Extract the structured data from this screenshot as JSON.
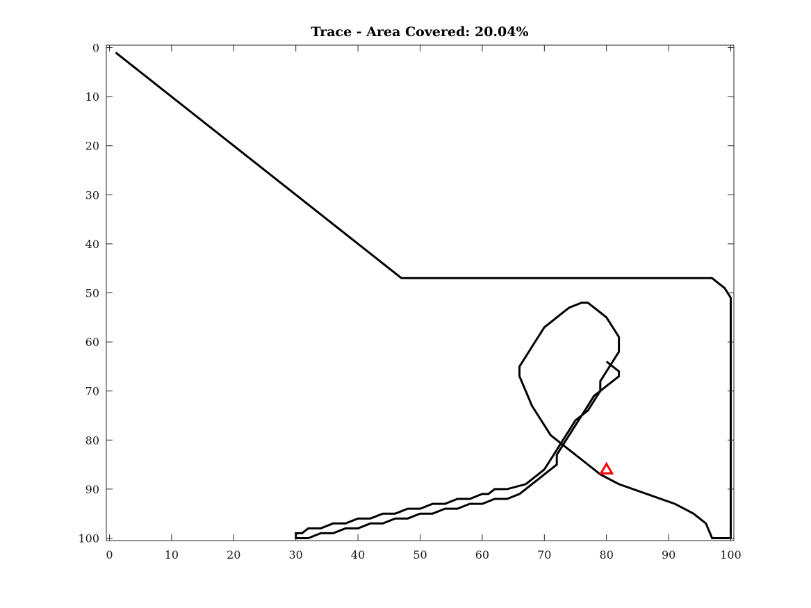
{
  "chart_data": {
    "type": "line",
    "title": "Trace - Area Covered: 20.04%",
    "xlabel": "",
    "ylabel": "",
    "xlim": [
      -0.5,
      100.5
    ],
    "ylim": [
      -0.5,
      100.5
    ],
    "y_reversed": true,
    "grid": false,
    "x_ticks": [
      0,
      10,
      20,
      30,
      40,
      50,
      60,
      70,
      80,
      90,
      100
    ],
    "y_ticks": [
      0,
      10,
      20,
      30,
      40,
      50,
      60,
      70,
      80,
      90,
      100
    ],
    "series": [
      {
        "color": "#000000",
        "x": [
          1,
          47,
          97,
          98,
          99,
          100,
          100,
          97,
          96,
          94,
          91,
          82,
          79,
          76,
          74,
          72,
          71,
          70,
          69,
          68,
          67,
          66,
          66,
          67,
          68,
          69,
          70,
          71,
          72,
          73,
          74,
          76,
          77,
          78,
          79,
          80,
          81,
          82,
          82,
          81,
          80,
          79,
          79,
          78,
          77,
          75,
          74,
          73,
          72,
          71,
          70,
          69,
          68,
          67,
          64,
          63,
          62,
          61,
          60,
          58,
          56,
          54,
          52,
          50,
          48,
          46,
          44,
          42,
          40,
          38,
          36,
          34,
          32,
          31,
          30,
          30,
          31,
          32,
          34,
          36,
          38,
          40,
          42,
          44,
          46,
          48,
          50,
          52,
          54,
          56,
          58,
          60,
          62,
          64,
          66,
          67,
          68,
          69,
          70,
          71,
          72,
          72,
          73,
          74,
          75,
          76,
          77,
          78,
          79,
          80,
          81,
          82,
          82,
          81,
          80
        ],
        "y": [
          1,
          47,
          47,
          48,
          49,
          51,
          100,
          100,
          97,
          95,
          93,
          89,
          87,
          84,
          82,
          80,
          79,
          77,
          75,
          73,
          70,
          67,
          65,
          63,
          61,
          59,
          57,
          56,
          55,
          54,
          53,
          52,
          52,
          53,
          54,
          55,
          57,
          59,
          62,
          64,
          66,
          68,
          70,
          72,
          74,
          76,
          78,
          80,
          82,
          84,
          86,
          87,
          88,
          89,
          90,
          90,
          90,
          91,
          91,
          92,
          92,
          93,
          93,
          94,
          94,
          95,
          95,
          96,
          96,
          97,
          97,
          98,
          98,
          99,
          99,
          100,
          100,
          100,
          99,
          99,
          98,
          98,
          97,
          97,
          96,
          96,
          95,
          95,
          94,
          94,
          93,
          93,
          92,
          92,
          91,
          90,
          89,
          88,
          87,
          86,
          85,
          83,
          81,
          79,
          77,
          75,
          73,
          71,
          70,
          69,
          68,
          67,
          66,
          65,
          64
        ]
      }
    ],
    "marker": {
      "shape": "triangle",
      "color": "#ff0000",
      "x": 80,
      "y": 86
    }
  }
}
